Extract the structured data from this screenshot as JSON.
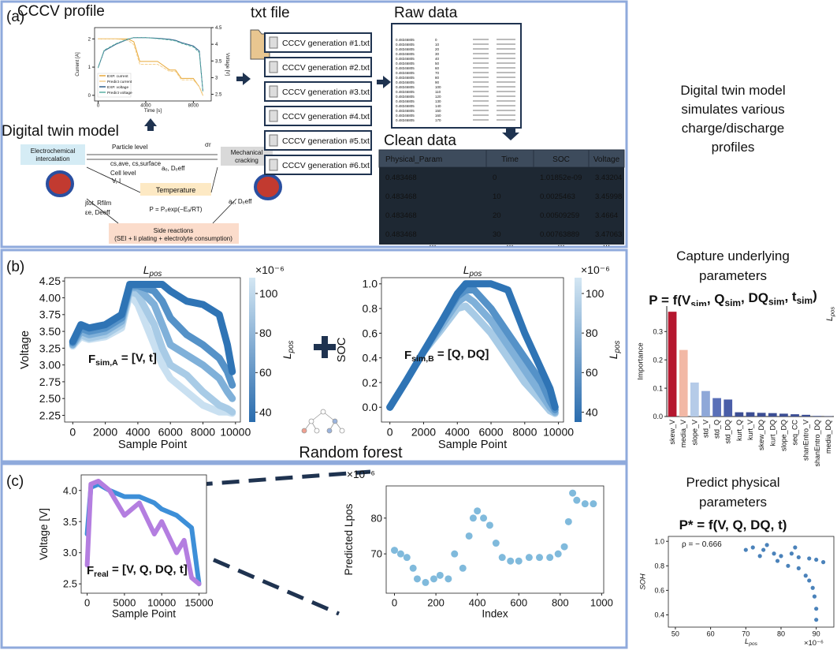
{
  "panels": {
    "a": "(a)",
    "b": "(b)",
    "c": "(c)"
  },
  "panel_a": {
    "txt_title": "txt file",
    "files": [
      "CCCV generation #1.txt",
      "CCCV generation #2.txt",
      "CCCV generation #3.txt",
      "CCCV generation #4.txt",
      "CCCV generation #5.txt",
      "CCCV generation #6.txt"
    ],
    "raw_title": "Raw data",
    "raw_rows": [
      [
        "0.48346805",
        "0"
      ],
      [
        "0.48346805",
        "10"
      ],
      [
        "0.48346805",
        "20"
      ],
      [
        "0.48346805",
        "30"
      ],
      [
        "0.48346805",
        "40"
      ],
      [
        "0.48346805",
        "50"
      ],
      [
        "0.48346805",
        "60"
      ],
      [
        "0.48346805",
        "70"
      ],
      [
        "0.48346805",
        "80"
      ],
      [
        "0.48346805",
        "90"
      ],
      [
        "0.48346805",
        "100"
      ],
      [
        "0.48346805",
        "110"
      ],
      [
        "0.48346805",
        "120"
      ],
      [
        "0.48346805",
        "130"
      ],
      [
        "0.48346805",
        "140"
      ],
      [
        "0.48346805",
        "150"
      ],
      [
        "0.48346805",
        "160"
      ],
      [
        "0.48346805",
        "170"
      ]
    ],
    "clean_title": "Clean data",
    "clean_table": {
      "columns": [
        "Physical_Param",
        "Time",
        "SOC",
        "Voltage"
      ],
      "rows": [
        [
          "0.483468",
          "0",
          "1.01852e-09",
          "3.43204"
        ],
        [
          "0.483468",
          "10",
          "0.0025463",
          "3.45998"
        ],
        [
          "0.483468",
          "20",
          "0.00509259",
          "3.4664"
        ],
        [
          "0.483468",
          "30",
          "0.00763889",
          "3.47063"
        ]
      ],
      "more": [
        "...",
        "...",
        "...",
        "..."
      ]
    },
    "twin_title": "Digital twin model",
    "diagram": {
      "intercalation": [
        "Electrochemical",
        "intercalation"
      ],
      "particle": "Particle level",
      "particle_vars": "cs,ave, cs,surface",
      "cell": "Cell level",
      "cell_vars": "V, I",
      "temperature": "Temperature",
      "arrhenius": "P = P₀exp(−Eₐ/RT)",
      "cracking": [
        "Mechanical",
        "cracking"
      ],
      "side": "Side reactions",
      "side_detail": "(SEI + li plating + electrolyte consumption)",
      "left_vars": "jtot, Rfilm",
      "left_vars2": "εe, Deeff",
      "mid_vars": "aₑ, Dₑeff",
      "right_vars": "aₑ, Dₑeff",
      "stress": "σr"
    }
  },
  "right": {
    "twin_text": [
      "Digital twin model",
      "simulates various",
      "charge/discharge",
      "profiles"
    ],
    "capture": [
      "Capture underlying",
      "parameters"
    ],
    "formula": [
      {
        "t": "P = f(V"
      },
      {
        "sub": "sim"
      },
      {
        "t": ", Q"
      },
      {
        "sub": "sim"
      },
      {
        "t": ", DQ"
      },
      {
        "sub": "sim"
      },
      {
        "t": ", t"
      },
      {
        "sub": "sim"
      },
      {
        "t": ")"
      }
    ],
    "predict": [
      "Predict physical",
      "parameters"
    ],
    "formula2": [
      {
        "t": "P* = f(V, Q, DQ, t)"
      }
    ]
  },
  "random_forest": "Random forest",
  "chart_data": [
    {
      "type": "line",
      "title": "CCCV profile",
      "xlabel": "Time [s]",
      "ylabel": "Current [A]",
      "y2label": "Voltage [V]",
      "xlim": [
        -300,
        9500
      ],
      "xticks": [
        0,
        4000,
        8000
      ],
      "ylim": [
        -0.2,
        2.4
      ],
      "yticks": [
        0,
        1,
        2
      ],
      "y2lim": [
        2.3,
        4.5
      ],
      "y2ticks": [
        2.5,
        3,
        3.5,
        4,
        4.5
      ],
      "legend": "lower left",
      "x": [
        0,
        500,
        1500,
        2500,
        3000,
        3500,
        4000,
        5000,
        6000,
        6500,
        7000,
        8000,
        8500,
        8800
      ],
      "series": [
        {
          "name": "EXP. current",
          "color": "#e8a93a",
          "values": [
            2.0,
            2.0,
            2.0,
            2.0,
            1.9,
            1.2,
            1.2,
            1.2,
            0.9,
            0.9,
            0.6,
            0.6,
            0.3,
            0.0
          ]
        },
        {
          "name": "Predict current",
          "color": "#f4d08e",
          "values": [
            2.0,
            2.0,
            2.0,
            1.95,
            1.8,
            1.1,
            1.1,
            1.1,
            0.85,
            0.85,
            0.55,
            0.55,
            0.3,
            0.0
          ]
        },
        {
          "name": "EXP. voltage",
          "color": "#2f5f8a",
          "axis": "y2",
          "values": [
            3.3,
            3.8,
            4.0,
            4.15,
            4.2,
            4.2,
            4.2,
            4.18,
            4.15,
            4.12,
            4.05,
            3.95,
            3.8,
            2.6
          ]
        },
        {
          "name": "Predict voltage",
          "color": "#5bb0a4",
          "axis": "y2",
          "values": [
            3.3,
            3.82,
            4.02,
            4.16,
            4.2,
            4.2,
            4.2,
            4.17,
            4.13,
            4.1,
            4.03,
            3.92,
            3.75,
            2.6
          ]
        }
      ]
    },
    {
      "type": "line",
      "title": [
        {
          "t": "L"
        },
        {
          "sub": "pos"
        }
      ],
      "xlabel": "Sample Point",
      "ylabel": "Voltage",
      "xlim": [
        -500,
        10300
      ],
      "xticks": [
        0,
        2000,
        4000,
        6000,
        8000,
        10000
      ],
      "ylim": [
        2.15,
        4.3
      ],
      "yticks": [
        2.25,
        {
          "value": 2.5,
          "label": "2.50"
        },
        2.75,
        {
          "value": 3,
          "label": "3.00"
        },
        3.25,
        {
          "value": 3.5,
          "label": "3.50"
        },
        3.75,
        {
          "value": 4,
          "label": "4.00"
        },
        4.25
      ],
      "colorbar": {
        "lim": [
          35,
          108
        ],
        "ticks": [
          40,
          60,
          80,
          100
        ],
        "exponent": "×10⁻⁶",
        "label": [
          {
            "t": "L"
          },
          {
            "sub": "pos"
          }
        ],
        "colors": [
          "#2a6cae",
          "#d3e6f3"
        ]
      },
      "annotation": [
        {
          "t": "F"
        },
        {
          "sub": "sim,A"
        },
        {
          "t": " = [V, t]"
        }
      ],
      "x": [
        0,
        500,
        1000,
        2000,
        3000,
        3500,
        4000,
        5000,
        5500,
        6000,
        7000,
        8000,
        9000,
        9500,
        9800
      ],
      "series": [
        {
          "color": "#c9e0f1",
          "values": [
            3.28,
            3.42,
            3.38,
            3.42,
            3.55,
            4.05,
            3.9,
            3.3,
            3.0,
            2.8,
            2.6,
            2.4,
            2.3,
            2.3,
            2.28
          ]
        },
        {
          "color": "#a8cbe6",
          "values": [
            3.3,
            3.45,
            3.4,
            3.45,
            3.6,
            4.1,
            4.05,
            3.6,
            3.25,
            3.0,
            2.85,
            2.6,
            2.4,
            2.35,
            2.3
          ]
        },
        {
          "color": "#7fb0d9",
          "values": [
            3.3,
            3.5,
            3.45,
            3.5,
            3.65,
            4.15,
            4.15,
            3.9,
            3.6,
            3.3,
            3.15,
            3.0,
            2.8,
            2.6,
            2.5
          ]
        },
        {
          "color": "#5592c8",
          "values": [
            3.33,
            3.55,
            3.5,
            3.55,
            3.7,
            4.18,
            4.18,
            4.1,
            3.95,
            3.7,
            3.45,
            3.3,
            3.1,
            2.9,
            2.7
          ]
        },
        {
          "color": "#2f74b5",
          "values": [
            3.35,
            3.6,
            3.55,
            3.6,
            3.75,
            4.2,
            4.2,
            4.2,
            4.2,
            4.1,
            3.95,
            3.9,
            3.75,
            3.3,
            2.9
          ]
        }
      ]
    },
    {
      "type": "line",
      "title": [
        {
          "t": "L"
        },
        {
          "sub": "pos"
        }
      ],
      "xlabel": "Sample Point",
      "ylabel": "SOC",
      "xlim": [
        -500,
        10300
      ],
      "xticks": [
        0,
        2000,
        4000,
        6000,
        8000,
        10000
      ],
      "ylim": [
        -0.12,
        1.05
      ],
      "yticks": [
        {
          "value": 0,
          "label": "0.0"
        },
        0.2,
        0.4,
        0.6,
        0.8,
        {
          "value": 1,
          "label": "1.0"
        }
      ],
      "colorbar": {
        "lim": [
          35,
          108
        ],
        "ticks": [
          40,
          60,
          80,
          100
        ],
        "exponent": "×10⁻⁶",
        "label": [
          {
            "t": "L"
          },
          {
            "sub": "pos"
          }
        ],
        "colors": [
          "#2a6cae",
          "#d3e6f3"
        ]
      },
      "annotation": [
        {
          "t": "F"
        },
        {
          "sub": "sim,B"
        },
        {
          "t": " = [Q, DQ]"
        }
      ],
      "x": [
        0,
        1000,
        2000,
        3000,
        4000,
        4500,
        5000,
        6000,
        7000,
        8000,
        9000,
        9500,
        9800
      ],
      "series": [
        {
          "color": "#a8cbe6",
          "values": [
            0,
            0.22,
            0.45,
            0.62,
            0.8,
            0.82,
            0.75,
            0.6,
            0.4,
            0.2,
            0.05,
            -0.03,
            -0.05
          ]
        },
        {
          "color": "#7fb0d9",
          "values": [
            0,
            0.22,
            0.45,
            0.65,
            0.85,
            0.9,
            0.85,
            0.7,
            0.5,
            0.3,
            0.1,
            0.0,
            -0.04
          ]
        },
        {
          "color": "#5592c8",
          "values": [
            0,
            0.22,
            0.45,
            0.68,
            0.9,
            0.95,
            0.95,
            0.8,
            0.6,
            0.4,
            0.2,
            0.05,
            -0.02
          ]
        },
        {
          "color": "#2f74b5",
          "values": [
            0,
            0.22,
            0.45,
            0.68,
            0.92,
            1.0,
            1.0,
            1.0,
            0.95,
            0.6,
            0.3,
            0.15,
            0.0
          ]
        }
      ]
    },
    {
      "type": "line",
      "xlabel": "Sample Point",
      "ylabel": "Voltage [V]",
      "xlim": [
        -800,
        16000
      ],
      "xticks": [
        0,
        5000,
        10000,
        15000
      ],
      "ylim": [
        2.35,
        4.25
      ],
      "yticks": [
        2.5,
        {
          "value": 3,
          "label": "3.0"
        },
        3.5,
        {
          "value": 4,
          "label": "4.0"
        }
      ],
      "annotation": [
        {
          "t": "F"
        },
        {
          "sub": "real"
        },
        {
          "t": " = [V, Q, DQ, t]"
        }
      ],
      "x": [
        0,
        500,
        1500,
        3000,
        5000,
        7000,
        9000,
        10000,
        12000,
        13000,
        14000,
        15000
      ],
      "series": [
        {
          "color": "#3d8fd8",
          "values": [
            3.3,
            4.05,
            4.1,
            4.0,
            3.9,
            3.9,
            3.8,
            3.7,
            3.6,
            3.5,
            3.4,
            2.5
          ]
        },
        {
          "color": "#b47ee0",
          "values": [
            2.8,
            4.1,
            4.15,
            4.0,
            3.6,
            3.8,
            3.3,
            3.5,
            3.0,
            3.2,
            2.6,
            2.5
          ]
        }
      ]
    },
    {
      "type": "scatter",
      "xlabel": "Index",
      "ylabel": "Predicted Lpos",
      "exponent": "×10⁻⁶",
      "color": "#6aaed6",
      "xlim": [
        -40,
        1010
      ],
      "xticks": [
        0,
        200,
        400,
        600,
        800,
        1000
      ],
      "ylim": [
        59,
        89
      ],
      "yticks": [
        70,
        80
      ],
      "x": [
        0,
        30,
        60,
        90,
        110,
        150,
        190,
        220,
        260,
        290,
        330,
        360,
        380,
        400,
        430,
        460,
        490,
        520,
        560,
        600,
        650,
        700,
        750,
        790,
        820,
        840,
        860,
        880,
        920,
        960
      ],
      "values": [
        71,
        70,
        69,
        66,
        63,
        62,
        63,
        64,
        63,
        70,
        66,
        75,
        80,
        82,
        80,
        78,
        73,
        69,
        68,
        68,
        69,
        69,
        69,
        70,
        72,
        79,
        87,
        85,
        84,
        84
      ]
    },
    {
      "type": "bar",
      "ylabel": "Importance",
      "side_label": [
        {
          "t": "L"
        },
        {
          "sub": "pos"
        }
      ],
      "ylim": [
        0,
        0.39
      ],
      "yticks": [
        {
          "value": 0,
          "label": "0.0"
        },
        0.1,
        0.2,
        0.3
      ],
      "categories": [
        "skew_V",
        "media_V",
        "slope_V",
        "std_V",
        "std_Q",
        "std_DQ",
        "kurt_Q",
        "kurt_V",
        "skew_DQ",
        "kurt_DQ",
        "slope_DQ",
        "seq_CC",
        "shanEntro_V",
        "shanEntro_DQ",
        "media_DQ"
      ],
      "values": [
        0.37,
        0.235,
        0.12,
        0.09,
        0.065,
        0.06,
        0.015,
        0.015,
        0.013,
        0.012,
        0.01,
        0.008,
        0.006,
        0.002,
        0.001
      ],
      "colors": [
        "#b5172f",
        "#f2b8a5",
        "#b5cbe8",
        "#8fa8d8",
        "#5a70b8",
        "#4a5ea8",
        "#3c4e94",
        "#3c4e94",
        "#3c4e94",
        "#3c4e94",
        "#3c4e94",
        "#3c4e94",
        "#3c4e94",
        "#3c4e94",
        "#3c4e94"
      ]
    },
    {
      "type": "scatter",
      "xlabel": [
        {
          "t": "L"
        },
        {
          "sub": "pos"
        }
      ],
      "ylabel": "SOH",
      "exponent": "×10⁻⁶",
      "color": "#2a6cae",
      "annotation": [
        {
          "t": "ρ = − 0.666"
        }
      ],
      "xlim": [
        48,
        95
      ],
      "xticks": [
        50,
        60,
        70,
        80,
        90
      ],
      "ylim": [
        0.3,
        1.04
      ],
      "yticks": [
        0.4,
        0.6,
        0.8,
        {
          "value": 1,
          "label": "1.0"
        }
      ],
      "x": [
        72,
        75,
        78,
        80,
        83,
        85,
        88,
        90,
        92,
        70,
        74,
        79,
        82,
        85,
        87,
        88,
        89,
        89.5,
        90,
        90,
        76,
        84
      ],
      "values": [
        0.95,
        0.93,
        0.9,
        0.88,
        0.9,
        0.87,
        0.86,
        0.85,
        0.83,
        0.93,
        0.88,
        0.84,
        0.8,
        0.78,
        0.72,
        0.68,
        0.62,
        0.55,
        0.45,
        0.36,
        0.97,
        0.95
      ]
    }
  ]
}
